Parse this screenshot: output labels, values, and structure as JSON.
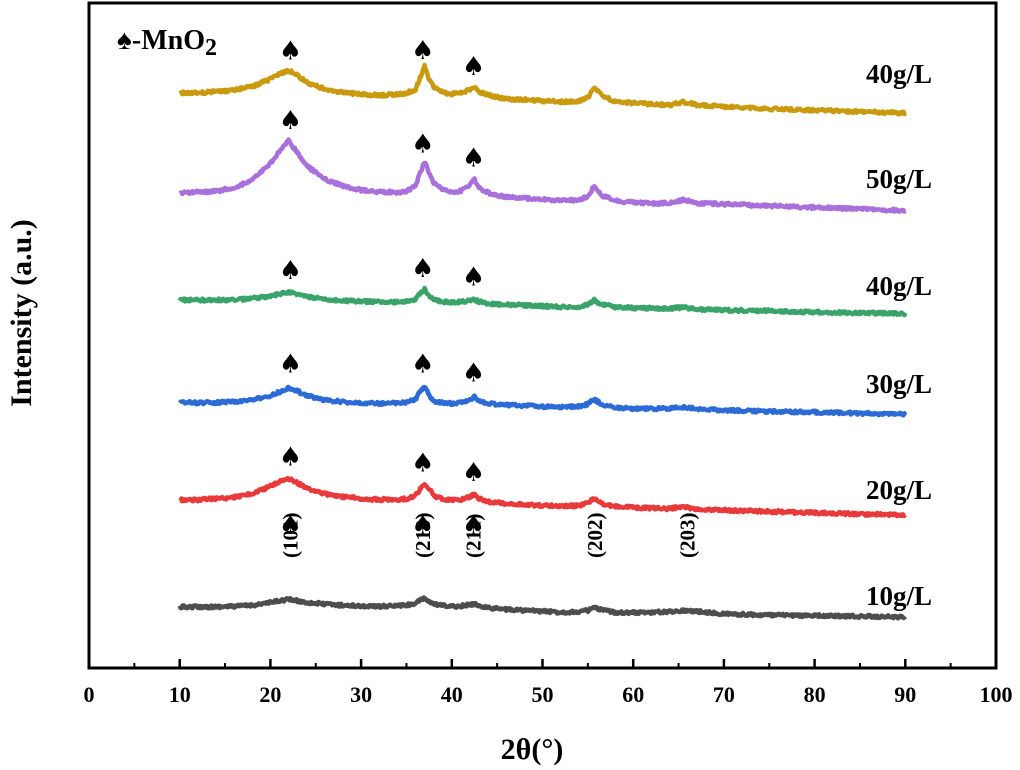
{
  "chart_data": {
    "type": "line",
    "xlabel": "2θ(°)",
    "ylabel": "Intensity (a.u.)",
    "xlim": [
      0,
      100
    ],
    "x_ticks": [
      0,
      10,
      20,
      30,
      40,
      50,
      60,
      70,
      80,
      90,
      100
    ],
    "y_ticks_shown": false,
    "grid": false,
    "phase_legend": {
      "symbol": "♠",
      "text": "-MnO",
      "subscript": "2"
    },
    "marker_symbol": "♠",
    "x": [
      10,
      12,
      14,
      16,
      18,
      20,
      21,
      22,
      23,
      24,
      26,
      28,
      30,
      32,
      34,
      35,
      36,
      36.5,
      37,
      37.5,
      38,
      39,
      40,
      41,
      42,
      42.5,
      43,
      44,
      46,
      48,
      50,
      52,
      54,
      55,
      55.7,
      56.5,
      58,
      60,
      62,
      64,
      65.5,
      67,
      70,
      75,
      80,
      85,
      90
    ],
    "series": [
      {
        "name": "10g/L",
        "color": "#4d4d4d",
        "values": [
          0,
          0.3,
          0.5,
          1,
          2,
          4,
          5.5,
          6.5,
          5.5,
          4.5,
          3.5,
          2.8,
          2.5,
          2.4,
          3,
          3.5,
          5,
          7,
          8.5,
          6.5,
          4.5,
          3.5,
          3,
          3.5,
          4.5,
          5,
          4,
          2.5,
          1.5,
          1,
          0.5,
          0,
          0.5,
          1.5,
          3.5,
          2,
          0.5,
          0.5,
          0.8,
          1.5,
          2.5,
          2,
          0.5,
          0,
          0,
          0,
          0
        ],
        "peaks": [
          {
            "x": 22.2,
            "hkl": "(101)"
          },
          {
            "x": 36.8,
            "hkl": "(210)"
          },
          {
            "x": 42.4,
            "hkl": "(211)"
          },
          {
            "x": 55.8,
            "hkl": "(202)"
          },
          {
            "x": 66.0,
            "hkl": "(203)"
          }
        ]
      },
      {
        "name": "20g/L",
        "color": "#e8393b",
        "values": [
          0,
          0.5,
          1.5,
          3,
          6,
          12,
          16,
          18,
          15,
          11,
          7,
          5,
          4,
          3.5,
          4,
          4.5,
          7,
          12,
          17,
          13,
          7,
          5,
          4,
          5,
          7,
          9,
          6,
          3.5,
          2.5,
          2,
          1.5,
          1.5,
          2,
          4,
          8,
          4,
          2,
          1.5,
          1.2,
          1,
          3,
          1,
          0.8,
          0.5,
          0.3,
          0,
          0
        ],
        "peaks": [
          {
            "x": 22.2
          },
          {
            "x": 36.8
          },
          {
            "x": 42.4
          }
        ]
      },
      {
        "name": "30g/L",
        "color": "#2c6bd6",
        "values": [
          0,
          -0.5,
          0,
          1,
          3,
          7,
          11,
          15,
          12,
          8,
          4,
          2.5,
          2,
          1.5,
          2,
          3,
          6,
          13,
          19,
          10,
          4.5,
          3,
          2.5,
          3.5,
          6.5,
          9,
          5,
          3,
          2,
          1.5,
          1,
          0.5,
          1.5,
          4,
          8.5,
          4,
          1,
          0,
          0.5,
          1,
          2.5,
          1,
          0,
          -0.5,
          -0.5,
          -1,
          -1
        ],
        "peaks": [
          {
            "x": 22.2
          },
          {
            "x": 36.8
          },
          {
            "x": 42.4
          }
        ]
      },
      {
        "name": "40g/L",
        "color": "#3aa36a",
        "values": [
          0,
          0.3,
          0.5,
          1,
          2.5,
          5,
          7,
          8.5,
          7,
          5,
          3,
          2,
          1.5,
          1.2,
          1.5,
          2,
          4,
          9,
          14,
          7,
          4,
          2.5,
          2,
          2.5,
          4,
          5,
          3,
          1.5,
          0.5,
          0.5,
          0,
          -0.5,
          0,
          2,
          6,
          2.5,
          0,
          -0.5,
          -0.5,
          -0.5,
          1,
          -0.5,
          -1,
          -1,
          -1.5,
          -1.5,
          -1.5
        ],
        "peaks": [
          {
            "x": 22.2
          },
          {
            "x": 36.8
          },
          {
            "x": 42.4
          }
        ]
      },
      {
        "name": "50g/L",
        "color": "#a970db",
        "values": [
          0,
          1,
          2,
          5,
          11,
          24,
          34,
          42,
          33,
          23,
          13,
          8,
          5,
          4,
          4,
          5,
          9,
          19,
          28,
          20,
          12,
          7,
          5,
          6,
          11,
          15,
          9,
          5,
          2,
          1.5,
          1,
          0.5,
          1,
          4,
          12,
          5,
          1,
          0,
          -0.5,
          0,
          3,
          0.5,
          0,
          -0.5,
          -1,
          -1.5,
          -2
        ],
        "peaks": [
          {
            "x": 22.2
          },
          {
            "x": 36.8
          },
          {
            "x": 42.4
          }
        ]
      },
      {
        "name": "40g/L",
        "color": "#c99a0e",
        "values": [
          0,
          0.5,
          1.5,
          3,
          6,
          12,
          16,
          19,
          15,
          10,
          5,
          2.5,
          1.5,
          1,
          2,
          3,
          6,
          15,
          24,
          14,
          8,
          4,
          3,
          4,
          6.5,
          9,
          5,
          2.5,
          0,
          -0.5,
          -1,
          -1.5,
          -1,
          2,
          10,
          4,
          -0.5,
          -1.5,
          -2,
          -2.5,
          0,
          -2,
          -3,
          -4,
          -4.5,
          -5,
          -5.5
        ],
        "peaks": [
          {
            "x": 22.2
          },
          {
            "x": 36.8
          },
          {
            "x": 42.4
          }
        ]
      }
    ]
  }
}
